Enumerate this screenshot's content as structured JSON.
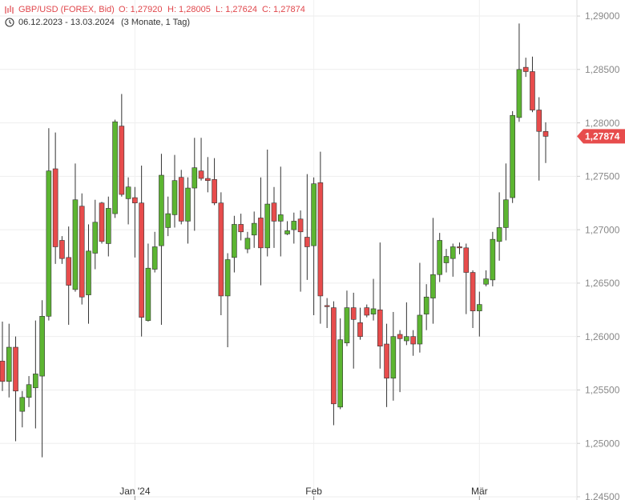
{
  "header": {
    "title": "GBP/USD (FOREX, Bid)",
    "open": "O: 1,27920",
    "high": "H: 1,28005",
    "low": "L: 1,27624",
    "close": "C: 1,27874",
    "range": "06.12.2023 - 13.03.2024",
    "period": "(3 Monate, 1 Tag)"
  },
  "chart_data": {
    "type": "candlestick",
    "categories": [
      null,
      null,
      null,
      null,
      null,
      null,
      null,
      null,
      null,
      null,
      null,
      null,
      null,
      null,
      null,
      null,
      null,
      null,
      null,
      null,
      "Jan '24",
      null,
      null,
      null,
      null,
      null,
      null,
      null,
      null,
      null,
      null,
      null,
      null,
      null,
      null,
      null,
      null,
      null,
      null,
      null,
      null,
      null,
      null,
      null,
      null,
      null,
      null,
      "Feb",
      null,
      null,
      null,
      null,
      null,
      null,
      null,
      null,
      null,
      null,
      null,
      null,
      null,
      null,
      null,
      null,
      null,
      null,
      null,
      null,
      null,
      null,
      null,
      null,
      "Mär",
      null,
      null,
      null,
      null,
      null,
      null,
      null,
      null,
      null,
      null
    ],
    "open": [
      1.2577,
      1.2558,
      1.259,
      1.253,
      1.2543,
      1.2552,
      1.2563,
      1.2619,
      1.2757,
      1.269,
      1.2674,
      1.2644,
      1.2722,
      1.2639,
      1.2678,
      1.2725,
      1.2687,
      1.2715,
      1.2797,
      1.2729,
      1.273,
      1.2725,
      1.2615,
      1.2663,
      1.2685,
      1.2702,
      1.2714,
      1.2749,
      1.2708,
      1.2739,
      1.2755,
      1.2748,
      1.2747,
      1.2725,
      1.2638,
      1.2674,
      1.2705,
      1.2682,
      1.2695,
      1.2711,
      1.2683,
      1.2725,
      1.2708,
      1.2696,
      1.27,
      1.271,
      1.2693,
      1.2685,
      1.2744,
      1.2629,
      1.2627,
      1.2534,
      1.2594,
      1.2627,
      1.2613,
      1.2627,
      1.2621,
      1.2625,
      1.2593,
      1.2561,
      1.2602,
      1.2596,
      1.26,
      1.2593,
      1.2621,
      1.2636,
      1.2658,
      1.2669,
      1.2673,
      1.2684,
      1.2683,
      1.266,
      1.2624,
      1.2649,
      1.2653,
      1.2689,
      1.2702,
      1.273,
      1.2805,
      1.2852,
      1.2848,
      1.2812,
      1.2792
    ],
    "high": [
      1.2614,
      1.2612,
      1.26,
      1.2549,
      1.2563,
      1.2615,
      1.2634,
      1.2795,
      1.2791,
      1.2694,
      1.2703,
      1.2762,
      1.2734,
      1.2705,
      1.2728,
      1.2726,
      1.2731,
      1.2803,
      1.2827,
      1.2749,
      1.274,
      1.276,
      1.2687,
      1.2698,
      1.2771,
      1.2731,
      1.277,
      1.2756,
      1.2749,
      1.2786,
      1.2786,
      1.2768,
      1.2767,
      1.2735,
      1.2678,
      1.2713,
      1.2715,
      1.2698,
      1.2717,
      1.2749,
      1.2775,
      1.274,
      1.2759,
      1.2708,
      1.2716,
      1.2718,
      1.2752,
      1.2749,
      1.2773,
      1.2636,
      1.2633,
      1.2617,
      1.2643,
      1.2641,
      1.2627,
      1.263,
      1.2654,
      1.2688,
      1.2612,
      1.2623,
      1.2606,
      1.2632,
      1.2606,
      1.2669,
      1.2649,
      1.2711,
      1.2697,
      1.2682,
      1.2687,
      1.2688,
      1.2687,
      1.2662,
      1.2642,
      1.2662,
      1.2698,
      1.2735,
      1.2762,
      1.2811,
      1.2893,
      1.2861,
      1.2862,
      1.2824,
      1.28005
    ],
    "low": [
      1.2549,
      1.2543,
      1.2502,
      1.2515,
      1.2534,
      1.2514,
      1.2487,
      1.2615,
      1.2668,
      1.2668,
      1.2611,
      1.2642,
      1.263,
      1.2612,
      1.2663,
      1.2687,
      1.2675,
      1.2711,
      1.2731,
      1.2705,
      1.2674,
      1.26,
      1.2614,
      1.266,
      1.2611,
      1.2694,
      1.2702,
      1.2705,
      1.2687,
      1.2699,
      1.2746,
      1.2735,
      1.2723,
      1.262,
      1.259,
      1.266,
      1.269,
      1.2678,
      1.2683,
      1.2648,
      1.2675,
      1.2683,
      1.2675,
      1.2695,
      1.2687,
      1.2642,
      1.2653,
      1.262,
      1.2612,
      1.2608,
      1.2517,
      1.2532,
      1.2591,
      1.257,
      1.2597,
      1.2618,
      1.2615,
      1.257,
      1.2534,
      1.254,
      1.2548,
      1.2592,
      1.2582,
      1.2585,
      1.2606,
      1.2612,
      1.2651,
      1.266,
      1.2656,
      1.2677,
      1.2621,
      1.2608,
      1.26,
      1.2647,
      1.2647,
      1.2671,
      1.269,
      1.2725,
      1.2801,
      1.2843,
      1.281,
      1.2746,
      1.27624
    ],
    "close": [
      1.2558,
      1.259,
      1.2549,
      1.2543,
      1.2555,
      1.2565,
      1.2619,
      1.2755,
      1.2684,
      1.2673,
      1.2648,
      1.2728,
      1.2637,
      1.268,
      1.2707,
      1.2689,
      1.272,
      1.2801,
      1.2733,
      1.274,
      1.2725,
      1.2618,
      1.2664,
      1.2684,
      1.2751,
      1.2715,
      1.2746,
      1.2708,
      1.2739,
      1.2758,
      1.2748,
      1.2746,
      1.2725,
      1.2638,
      1.2672,
      1.2705,
      1.2698,
      1.2692,
      1.2706,
      1.2683,
      1.2724,
      1.2708,
      1.2714,
      1.2699,
      1.2708,
      1.2698,
      1.2684,
      1.2743,
      1.2638,
      1.2628,
      1.2537,
      1.2597,
      1.2627,
      1.2616,
      1.26,
      1.262,
      1.2626,
      1.2591,
      1.2561,
      1.26,
      1.2598,
      1.26,
      1.2593,
      1.262,
      1.2637,
      1.2658,
      1.269,
      1.2675,
      1.2684,
      1.2683,
      1.266,
      1.2624,
      1.263,
      1.2654,
      1.2691,
      1.2702,
      1.2728,
      1.2807,
      1.285,
      1.2848,
      1.2812,
      1.2792,
      1.27874
    ],
    "up_color": "#5cb531",
    "down_color": "#e74c4c",
    "ylim": [
      1.2447,
      1.2915
    ],
    "yticks": [
      {
        "value": 1.245,
        "label": "1,24500"
      },
      {
        "value": 1.25,
        "label": "1,25000"
      },
      {
        "value": 1.255,
        "label": "1,25500"
      },
      {
        "value": 1.26,
        "label": "1,26000"
      },
      {
        "value": 1.265,
        "label": "1,26500"
      },
      {
        "value": 1.27,
        "label": "1,27000"
      },
      {
        "value": 1.275,
        "label": "1,27500"
      },
      {
        "value": 1.28,
        "label": "1,28000"
      },
      {
        "value": 1.285,
        "label": "1,28500"
      },
      {
        "value": 1.29,
        "label": "1,29000"
      }
    ],
    "last_price": {
      "value": 1.27874,
      "label": "1,27874"
    },
    "grid": true
  }
}
